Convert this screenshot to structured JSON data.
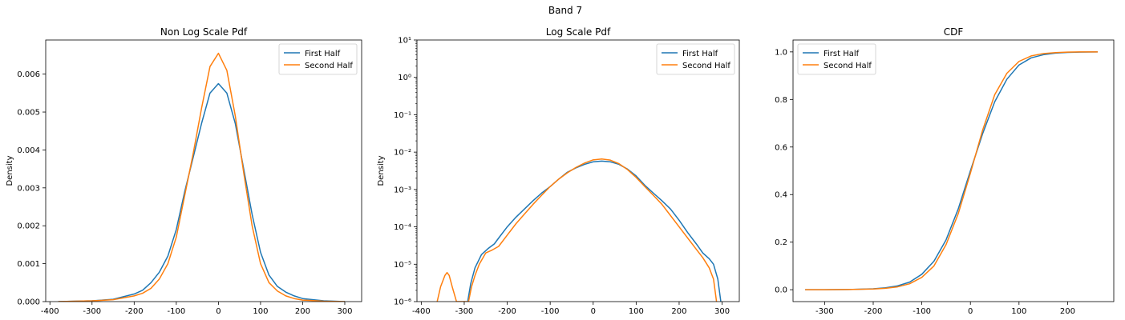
{
  "figure": {
    "suptitle": "Band 7"
  },
  "colors": {
    "first": "#1f77b4",
    "second": "#ff7f0e"
  },
  "chart_data": [
    {
      "type": "line",
      "title": "Non Log Scale Pdf",
      "xlabel": "",
      "ylabel": "Density",
      "xlim": [
        -410,
        340
      ],
      "ylim": [
        0,
        0.0069
      ],
      "yscale": "linear",
      "xticks": [
        -400,
        -300,
        -200,
        -100,
        0,
        100,
        200,
        300
      ],
      "yticks": [
        0,
        0.001,
        0.002,
        0.003,
        0.004,
        0.005,
        0.006
      ],
      "ytick_labels": [
        "0.000",
        "0.001",
        "0.002",
        "0.003",
        "0.004",
        "0.005",
        "0.006"
      ],
      "grid": false,
      "legend": "top-right",
      "series": [
        {
          "name": "First Half",
          "x": [
            -380,
            -300,
            -250,
            -200,
            -180,
            -160,
            -140,
            -120,
            -100,
            -80,
            -60,
            -40,
            -20,
            0,
            20,
            40,
            60,
            80,
            100,
            120,
            140,
            160,
            180,
            200,
            250,
            300
          ],
          "y": [
            0.0,
            2e-05,
            6e-05,
            0.0002,
            0.0003,
            0.0005,
            0.00078,
            0.0012,
            0.0019,
            0.0029,
            0.0038,
            0.0047,
            0.0055,
            0.00575,
            0.0055,
            0.0047,
            0.0035,
            0.0023,
            0.0013,
            0.0007,
            0.0004,
            0.00025,
            0.00015,
            8e-05,
            2e-05,
            0.0
          ]
        },
        {
          "name": "Second Half",
          "x": [
            -380,
            -300,
            -250,
            -200,
            -180,
            -160,
            -140,
            -120,
            -100,
            -80,
            -60,
            -40,
            -20,
            0,
            20,
            40,
            60,
            80,
            100,
            120,
            140,
            160,
            180,
            200,
            250,
            300
          ],
          "y": [
            0.0,
            2e-05,
            5e-05,
            0.00015,
            0.00022,
            0.00035,
            0.0006,
            0.001,
            0.0017,
            0.0028,
            0.0039,
            0.0051,
            0.0062,
            0.00655,
            0.0061,
            0.0049,
            0.0034,
            0.002,
            0.001,
            0.0005,
            0.00028,
            0.00015,
            8e-05,
            4e-05,
            1e-05,
            0.0
          ]
        }
      ]
    },
    {
      "type": "line",
      "title": "Log Scale Pdf",
      "xlabel": "",
      "ylabel": "Density",
      "xlim": [
        -410,
        340
      ],
      "ylim": [
        1e-06,
        10
      ],
      "yscale": "log",
      "xticks": [
        -400,
        -300,
        -200,
        -100,
        0,
        100,
        200,
        300
      ],
      "yticks": [
        1e-06,
        1e-05,
        0.0001,
        0.001,
        0.01,
        0.1,
        1,
        10
      ],
      "ytick_labels": [
        "10⁻⁶",
        "10⁻⁵",
        "10⁻⁴",
        "10⁻³",
        "10⁻²",
        "10⁻¹",
        "10⁰",
        "10¹"
      ],
      "grid": false,
      "legend": "top-right",
      "series": [
        {
          "name": "First Half",
          "x": [
            -292,
            -285,
            -275,
            -260,
            -245,
            -230,
            -220,
            -200,
            -180,
            -160,
            -140,
            -120,
            -100,
            -80,
            -60,
            -40,
            -20,
            0,
            20,
            40,
            60,
            80,
            100,
            120,
            140,
            160,
            180,
            200,
            220,
            240,
            255,
            270,
            280,
            290,
            297
          ],
          "y": [
            1e-06,
            3e-06,
            8e-06,
            1.8e-05,
            2.6e-05,
            3.5e-05,
            5e-05,
            0.0001,
            0.00018,
            0.0003,
            0.0005,
            0.0008,
            0.0012,
            0.0019,
            0.0029,
            0.0038,
            0.0047,
            0.0055,
            0.00575,
            0.0055,
            0.0047,
            0.0035,
            0.0023,
            0.0013,
            0.0008,
            0.0005,
            0.0003,
            0.00015,
            7e-05,
            3.5e-05,
            2e-05,
            1.4e-05,
            1e-05,
            4e-06,
            1e-06
          ]
        },
        {
          "name": "Second Half",
          "x": [
            -363,
            -355,
            -345,
            -340,
            -335,
            -328,
            -318,
            -290,
            -283,
            -275,
            -265,
            -250,
            -235,
            -220,
            -200,
            -180,
            -160,
            -140,
            -120,
            -100,
            -80,
            -60,
            -40,
            -20,
            0,
            20,
            40,
            60,
            80,
            100,
            120,
            140,
            160,
            180,
            200,
            220,
            240,
            255,
            270,
            280,
            287
          ],
          "y": [
            1e-06,
            2.5e-06,
            5e-06,
            6e-06,
            5e-06,
            2.5e-06,
            1e-06,
            1e-06,
            2.5e-06,
            5e-06,
            1e-05,
            2e-05,
            2.4e-05,
            3e-05,
            6e-05,
            0.00012,
            0.00022,
            0.0004,
            0.0007,
            0.0012,
            0.0019,
            0.0028,
            0.0039,
            0.0051,
            0.0062,
            0.00655,
            0.0061,
            0.0049,
            0.0034,
            0.0021,
            0.0012,
            0.0007,
            0.0004,
            0.0002,
            0.0001,
            5e-05,
            2.5e-05,
            1.5e-05,
            8e-06,
            4e-06,
            1e-06
          ]
        }
      ]
    },
    {
      "type": "line",
      "title": "CDF",
      "xlabel": "",
      "ylabel": "",
      "xlim": [
        -365,
        295
      ],
      "ylim": [
        -0.05,
        1.05
      ],
      "yscale": "linear",
      "xticks": [
        -300,
        -200,
        -100,
        0,
        100,
        200
      ],
      "yticks": [
        0,
        0.2,
        0.4,
        0.6,
        0.8,
        1.0
      ],
      "ytick_labels": [
        "0.0",
        "0.2",
        "0.4",
        "0.6",
        "0.8",
        "1.0"
      ],
      "grid": false,
      "legend": "top-left",
      "series": [
        {
          "name": "First Half",
          "x": [
            -340,
            -300,
            -250,
            -200,
            -175,
            -150,
            -125,
            -100,
            -75,
            -50,
            -25,
            0,
            25,
            50,
            75,
            100,
            125,
            150,
            175,
            200,
            225,
            262
          ],
          "y": [
            0.0,
            0.0,
            0.001,
            0.004,
            0.008,
            0.016,
            0.032,
            0.065,
            0.12,
            0.21,
            0.34,
            0.5,
            0.655,
            0.79,
            0.885,
            0.945,
            0.975,
            0.988,
            0.995,
            0.998,
            0.999,
            1.0
          ]
        },
        {
          "name": "Second Half",
          "x": [
            -340,
            -300,
            -250,
            -200,
            -175,
            -150,
            -125,
            -100,
            -75,
            -50,
            -25,
            0,
            25,
            50,
            75,
            100,
            125,
            150,
            175,
            200,
            225,
            262
          ],
          "y": [
            0.0,
            0.0,
            0.001,
            0.003,
            0.006,
            0.012,
            0.025,
            0.052,
            0.1,
            0.19,
            0.32,
            0.49,
            0.67,
            0.82,
            0.91,
            0.96,
            0.983,
            0.993,
            0.997,
            0.999,
            1.0,
            1.0
          ]
        }
      ]
    }
  ]
}
